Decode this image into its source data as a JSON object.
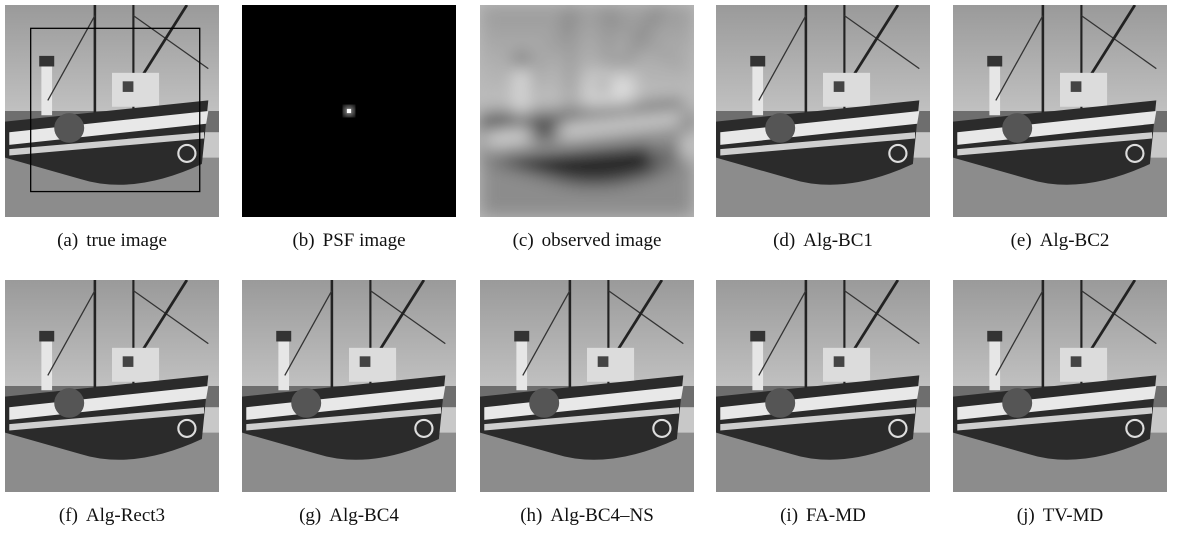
{
  "figure": {
    "panels": [
      {
        "label": "(a)",
        "caption": "true image"
      },
      {
        "label": "(b)",
        "caption": "PSF image"
      },
      {
        "label": "(c)",
        "caption": "observed image"
      },
      {
        "label": "(d)",
        "caption": "Alg-BC1"
      },
      {
        "label": "(e)",
        "caption": "Alg-BC2"
      },
      {
        "label": "(f)",
        "caption": "Alg-Rect3"
      },
      {
        "label": "(g)",
        "caption": "Alg-BC4"
      },
      {
        "label": "(h)",
        "caption": "Alg-BC4–NS"
      },
      {
        "label": "(i)",
        "caption": "FA-MD"
      },
      {
        "label": "(j)",
        "caption": "TV-MD"
      }
    ]
  }
}
